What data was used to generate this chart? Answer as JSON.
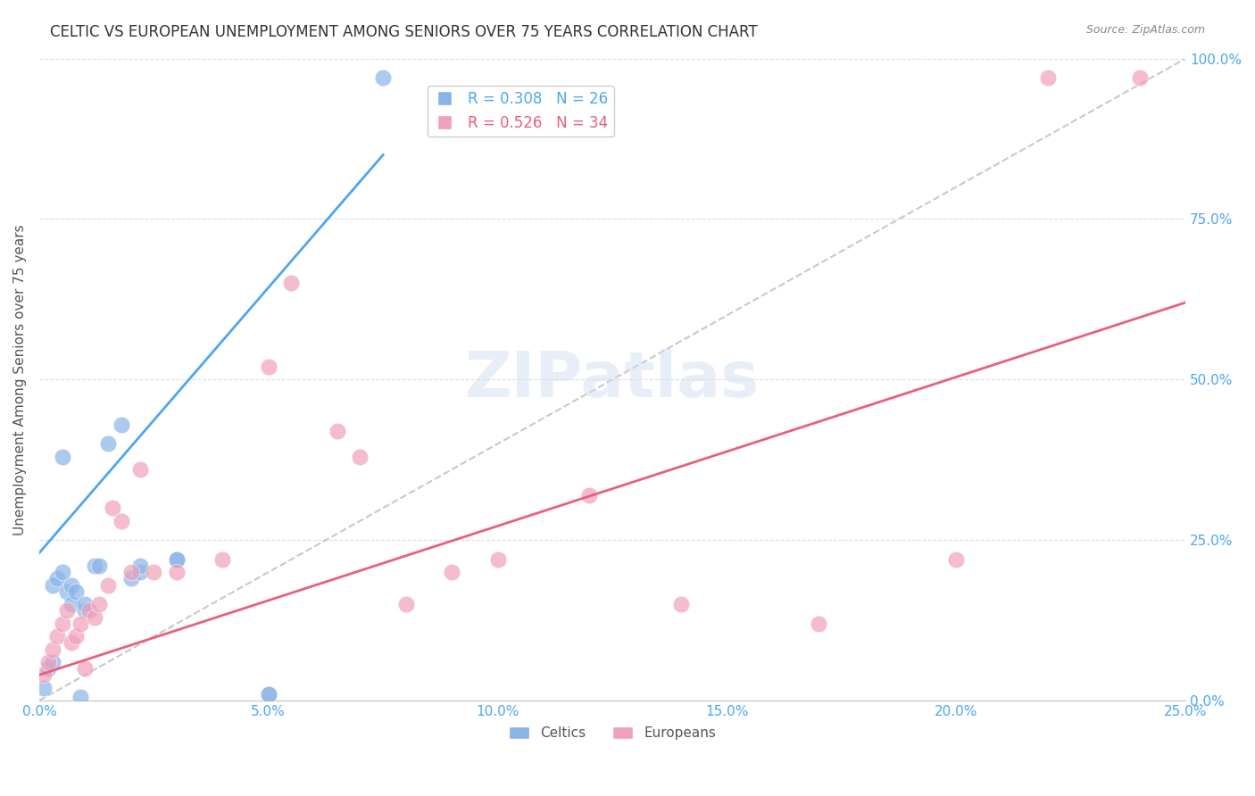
{
  "title": "CELTIC VS EUROPEAN UNEMPLOYMENT AMONG SENIORS OVER 75 YEARS CORRELATION CHART",
  "source": "Source: ZipAtlas.com",
  "ylabel": "Unemployment Among Seniors over 75 years",
  "xlabel": "",
  "xlim": [
    0.0,
    0.25
  ],
  "ylim": [
    0.0,
    1.0
  ],
  "xticks": [
    0.0,
    0.05,
    0.1,
    0.15,
    0.2,
    0.25
  ],
  "yticks_right": [
    0.0,
    0.25,
    0.5,
    0.75,
    1.0
  ],
  "celtics_R": 0.308,
  "celtics_N": 26,
  "europeans_R": 0.526,
  "europeans_N": 34,
  "color_celtic": "#89b4e8",
  "color_european": "#f0a0b8",
  "color_celtic_line": "#4da6f0",
  "color_european_line": "#e8607a",
  "color_diagonal": "#cccccc",
  "color_axis_labels": "#4da6f0",
  "color_title": "#333333",
  "watermark": "ZIPatlas",
  "background_color": "#ffffff",
  "celtics_x": [
    0.001,
    0.002,
    0.003,
    0.003,
    0.004,
    0.005,
    0.005,
    0.006,
    0.007,
    0.007,
    0.008,
    0.009,
    0.01,
    0.01,
    0.012,
    0.013,
    0.015,
    0.018,
    0.02,
    0.022,
    0.022,
    0.03,
    0.03,
    0.05,
    0.05,
    0.075
  ],
  "celtics_y": [
    0.02,
    0.05,
    0.06,
    0.18,
    0.19,
    0.2,
    0.38,
    0.17,
    0.18,
    0.15,
    0.17,
    0.005,
    0.14,
    0.15,
    0.21,
    0.21,
    0.4,
    0.43,
    0.19,
    0.2,
    0.21,
    0.22,
    0.22,
    0.01,
    0.01,
    0.97
  ],
  "europeans_x": [
    0.001,
    0.002,
    0.003,
    0.004,
    0.005,
    0.006,
    0.007,
    0.008,
    0.009,
    0.01,
    0.011,
    0.012,
    0.013,
    0.015,
    0.016,
    0.018,
    0.02,
    0.022,
    0.025,
    0.03,
    0.04,
    0.05,
    0.055,
    0.065,
    0.07,
    0.08,
    0.09,
    0.1,
    0.12,
    0.14,
    0.17,
    0.2,
    0.22,
    0.24
  ],
  "europeans_y": [
    0.04,
    0.06,
    0.08,
    0.1,
    0.12,
    0.14,
    0.09,
    0.1,
    0.12,
    0.05,
    0.14,
    0.13,
    0.15,
    0.18,
    0.3,
    0.28,
    0.2,
    0.36,
    0.2,
    0.2,
    0.22,
    0.52,
    0.65,
    0.42,
    0.38,
    0.15,
    0.2,
    0.22,
    0.32,
    0.15,
    0.12,
    0.22,
    0.97,
    0.97
  ],
  "celtic_line_x": [
    0.0,
    0.075
  ],
  "celtic_line_y": [
    0.23,
    0.85
  ],
  "european_line_x": [
    0.0,
    0.25
  ],
  "european_line_y": [
    0.04,
    0.62
  ],
  "diag_line_x": [
    0.0,
    0.25
  ],
  "diag_line_y": [
    0.0,
    1.0
  ]
}
